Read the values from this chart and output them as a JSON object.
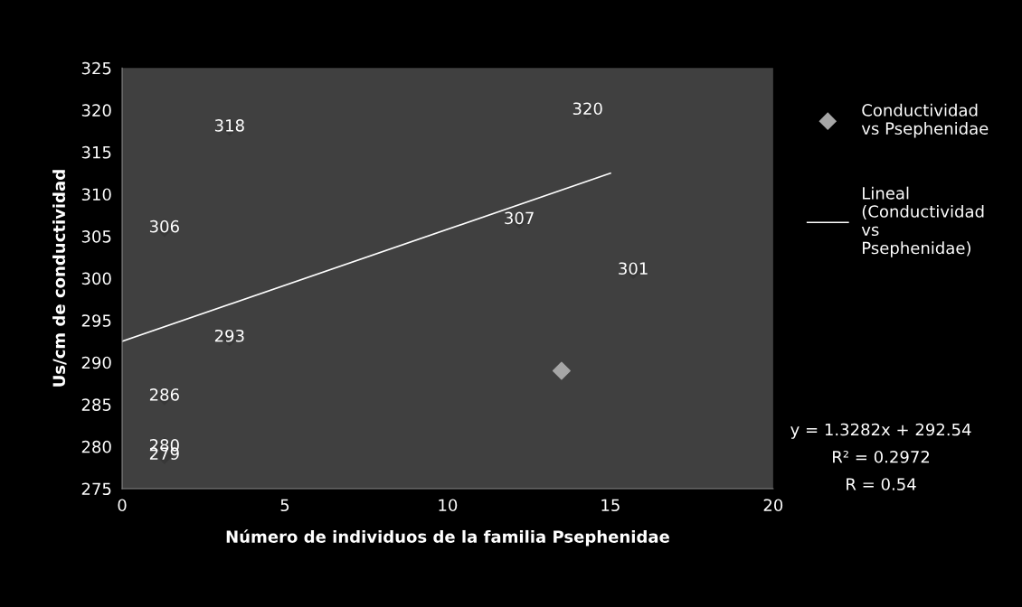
{
  "chart_data": {
    "type": "scatter",
    "xlabel": "Número de individuos de la familia Psephenidae",
    "ylabel": "Us/cm de conductividad",
    "xlim": [
      0,
      20
    ],
    "xticks": [
      0,
      5,
      10,
      15,
      20
    ],
    "ylim": [
      275,
      325
    ],
    "yticks": [
      275,
      280,
      285,
      290,
      295,
      300,
      305,
      310,
      315,
      320,
      325
    ],
    "grid": false,
    "legend": "right",
    "series": [
      {
        "name": "Conductividad vs Psephenidae",
        "marker": "diamond",
        "color": "#a6a6a6",
        "x": [
          13.5
        ],
        "values": [
          289
        ]
      },
      {
        "marker": "diamond",
        "color": "#383838",
        "x": [
          1.3,
          3.3,
          14.3,
          12.2,
          15.7,
          3.3,
          1.3,
          1.3,
          1.3
        ],
        "values": [
          306,
          318,
          320,
          307,
          301,
          293,
          286,
          280,
          279
        ],
        "data_labels": true
      },
      {
        "name": "Lineal (Conductividad vs Psephenidae)",
        "type": "line",
        "marker": "none",
        "line_style": "solid",
        "color": "#ffffff",
        "x": [
          0,
          15
        ],
        "values": [
          292.5,
          312.5
        ]
      }
    ],
    "annotations": [
      "y = 1.3282x + 292.54",
      "R² = 0.2972",
      "R = 0.54"
    ]
  }
}
